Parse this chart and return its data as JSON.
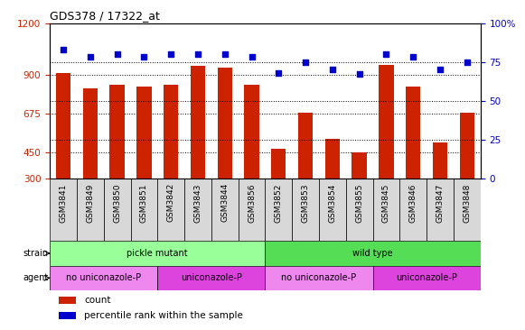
{
  "title": "GDS378 / 17322_at",
  "samples": [
    "GSM3841",
    "GSM3849",
    "GSM3850",
    "GSM3851",
    "GSM3842",
    "GSM3843",
    "GSM3844",
    "GSM3856",
    "GSM3852",
    "GSM3853",
    "GSM3854",
    "GSM3855",
    "GSM3845",
    "GSM3846",
    "GSM3847",
    "GSM3848"
  ],
  "counts": [
    910,
    820,
    840,
    830,
    840,
    950,
    940,
    840,
    470,
    680,
    530,
    450,
    955,
    830,
    510,
    680
  ],
  "percentiles": [
    83,
    78,
    80,
    78,
    80,
    80,
    80,
    78,
    68,
    75,
    70,
    67,
    80,
    78,
    70,
    75
  ],
  "ylim_left": [
    300,
    1200
  ],
  "ylim_right": [
    0,
    100
  ],
  "yticks_left": [
    300,
    450,
    675,
    900,
    1200
  ],
  "yticks_right": [
    0,
    25,
    50,
    75,
    100
  ],
  "right_tick_labels": [
    "0",
    "25",
    "50",
    "75",
    "100%"
  ],
  "bar_color": "#cc2200",
  "dot_color": "#0000cc",
  "plot_bg": "#ffffff",
  "strain_groups": [
    {
      "text": "pickle mutant",
      "start": 0,
      "end": 8,
      "color": "#99ff99"
    },
    {
      "text": "wild type",
      "start": 8,
      "end": 16,
      "color": "#55dd55"
    }
  ],
  "agent_groups": [
    {
      "text": "no uniconazole-P",
      "start": 0,
      "end": 4,
      "color": "#ee88ee"
    },
    {
      "text": "uniconazole-P",
      "start": 4,
      "end": 8,
      "color": "#dd44dd"
    },
    {
      "text": "no uniconazole-P",
      "start": 8,
      "end": 12,
      "color": "#ee88ee"
    },
    {
      "text": "uniconazole-P",
      "start": 12,
      "end": 16,
      "color": "#dd44dd"
    }
  ],
  "strain_label": "strain",
  "agent_label": "agent",
  "legend_count_label": "count",
  "legend_pct_label": "percentile rank within the sample",
  "xlabel_fontsize": 6.5,
  "title_fontsize": 9,
  "tick_fontsize": 7.5,
  "row_label_fontsize": 7,
  "row_text_fontsize": 7
}
